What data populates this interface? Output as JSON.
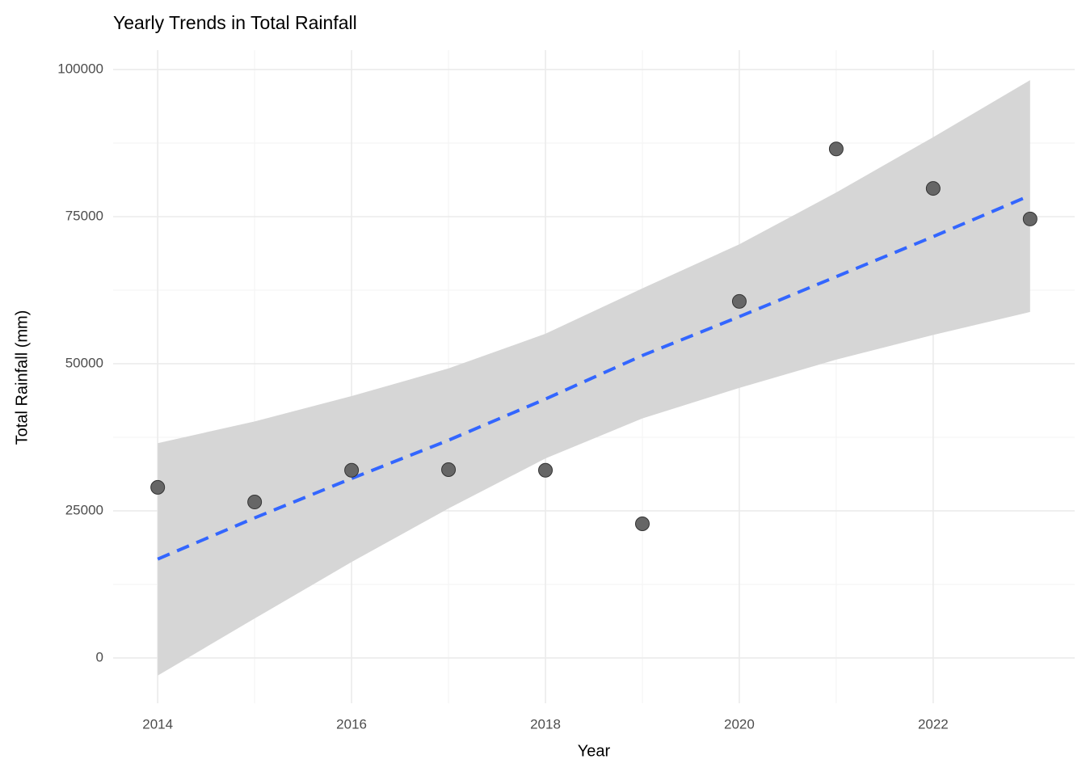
{
  "chart_data": {
    "type": "scatter",
    "title": "Yearly Trends in Total Rainfall",
    "x_label": "Year",
    "y_label": "Total Rainfall (mm)",
    "x": [
      2014,
      2015,
      2016,
      2017,
      2018,
      2019,
      2020,
      2021,
      2022,
      2023
    ],
    "values": [
      29000,
      26500,
      31900,
      32000,
      31900,
      22800,
      60600,
      86500,
      79800,
      74600
    ],
    "trend": [
      16800,
      23800,
      30500,
      37000,
      44000,
      51400,
      58000,
      64800,
      71600,
      78600
    ],
    "band_upper": [
      36500,
      40200,
      44500,
      49200,
      55100,
      62800,
      70300,
      79100,
      88500,
      98200
    ],
    "band_lower": [
      -3000,
      6700,
      16300,
      25400,
      33900,
      40700,
      45900,
      50700,
      54900,
      58800
    ],
    "color": "#666666",
    "trend_color": "#3366FF",
    "band_color": "#d6d6d6",
    "xlim": [
      2013.54,
      2023.46
    ],
    "ylim": [
      -7700,
      103300
    ],
    "xticks": [
      2014,
      2016,
      2018,
      2020,
      2022
    ],
    "yticks": [
      0,
      25000,
      50000,
      75000,
      100000
    ],
    "grid": true
  }
}
